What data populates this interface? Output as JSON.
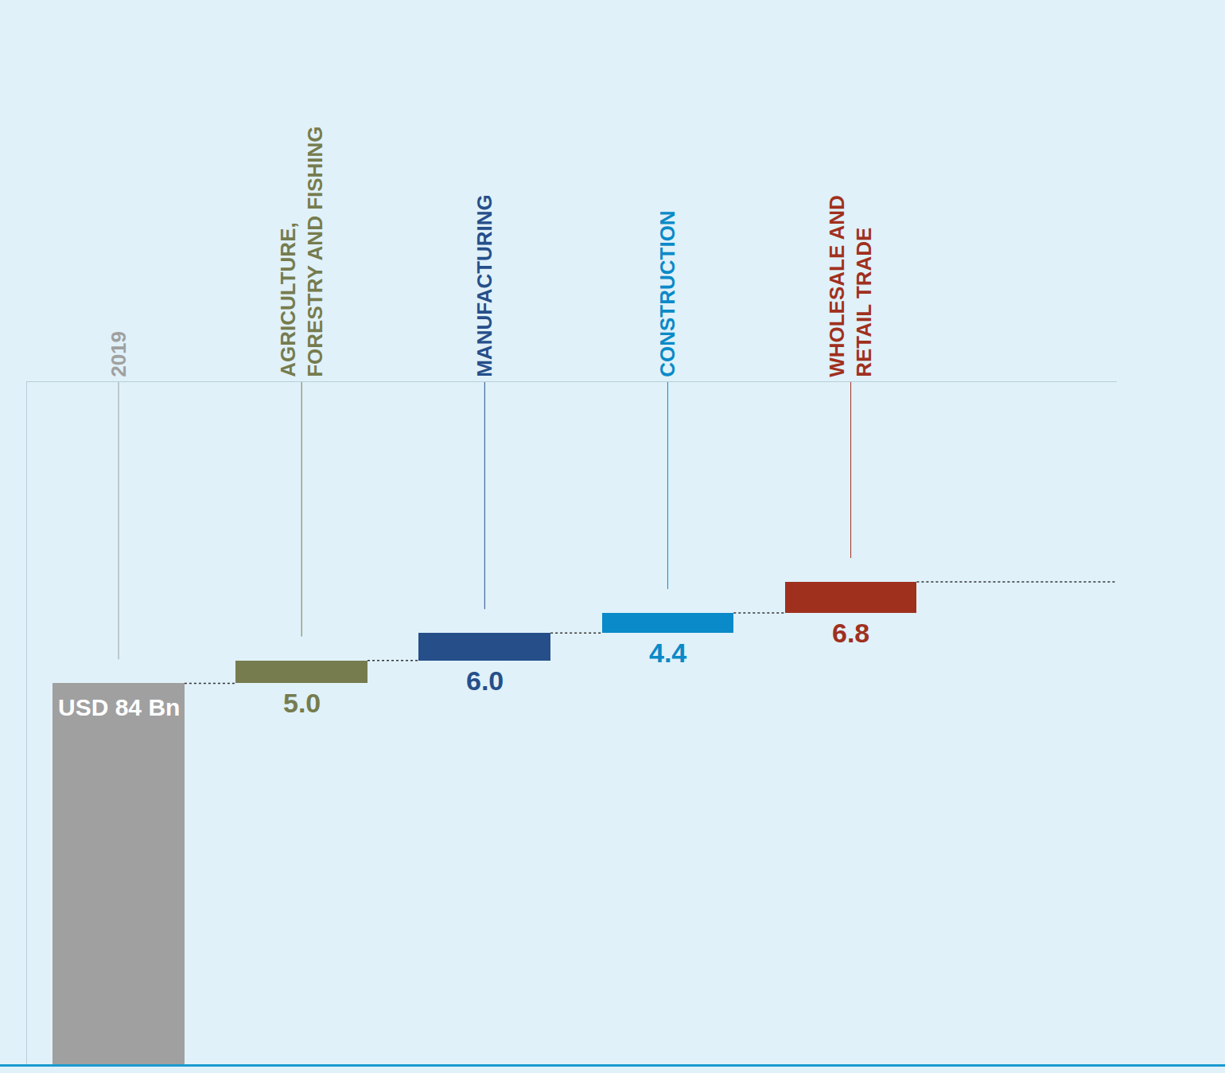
{
  "chart_data": {
    "type": "waterfall",
    "categories": [
      "2019",
      "AGRICULTURE, FORESTRY AND FISHING",
      "MANUFACTURING",
      "CONSTRUCTION",
      "WHOLESALE AND RETAIL TRADE"
    ],
    "values": [
      84,
      5.0,
      6.0,
      4.4,
      6.8
    ],
    "value_labels": [
      "USD 84 Bn",
      "5.0",
      "6.0",
      "4.4",
      "6.8"
    ],
    "colors": [
      "#a0a0a0",
      "#767c4e",
      "#264f8a",
      "#0a8ac8",
      "#a0301e"
    ],
    "data_labels": true,
    "ylim": [
      0,
      150
    ],
    "yticks": [],
    "tick_labels": "x",
    "grid": false
  }
}
